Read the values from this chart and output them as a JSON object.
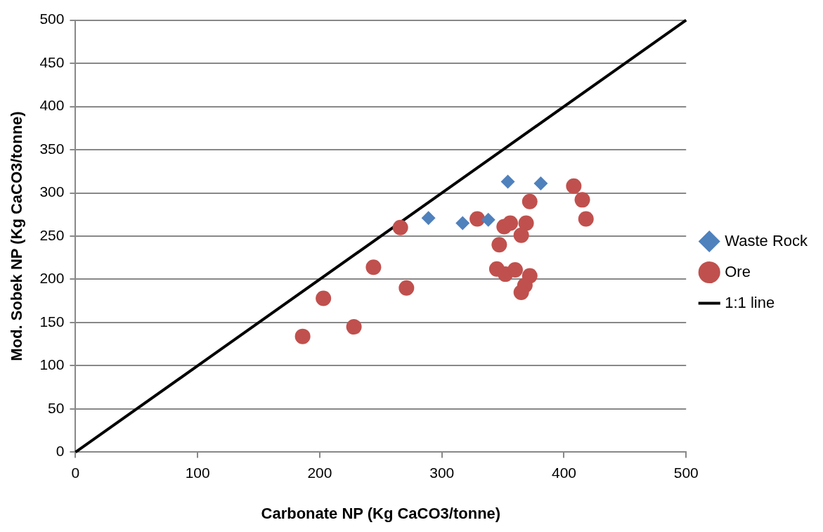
{
  "chart_data": {
    "type": "scatter",
    "xlabel": "Carbonate NP (Kg CaCO3/tonne)",
    "ylabel": "Mod. Sobek NP (Kg CaCO3/tonne)",
    "xlim": [
      0,
      500
    ],
    "xticks": [
      0,
      100,
      200,
      300,
      400,
      500
    ],
    "ylim": [
      0,
      500
    ],
    "yticks": [
      0,
      50,
      100,
      150,
      200,
      250,
      300,
      350,
      400,
      450,
      500
    ],
    "grid": "y",
    "legend": "right",
    "series": [
      {
        "name": "Waste Rock",
        "color": "#4f81bd",
        "marker": "diamond",
        "x": [
          289,
          317,
          338,
          354,
          381
        ],
        "values": [
          271,
          265,
          269,
          313,
          311
        ]
      },
      {
        "name": "Ore",
        "color": "#c0504d",
        "marker": "circle",
        "x": [
          408,
          415,
          418,
          372,
          329,
          266,
          351,
          356,
          369,
          365,
          347,
          244,
          345,
          352,
          360,
          372,
          368,
          365,
          271,
          203,
          228,
          186
        ],
        "values": [
          308,
          292,
          270,
          290,
          270,
          260,
          261,
          265,
          265,
          251,
          240,
          214,
          212,
          206,
          211,
          204,
          193,
          185,
          190,
          178,
          145,
          134
        ]
      },
      {
        "name": "1:1 line",
        "type": "line",
        "color": "#000000",
        "marker": "none",
        "x": [
          0,
          500
        ],
        "values": [
          0,
          500
        ]
      }
    ]
  }
}
